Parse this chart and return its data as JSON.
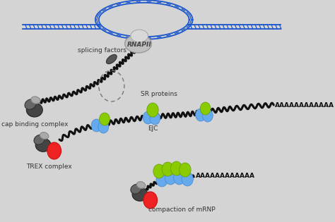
{
  "background_color": "#d4d4d4",
  "labels": {
    "splicing_factors": "splicing factors",
    "rnapii": "RNAPII",
    "cap_binding": "cap binding complex",
    "sr_proteins": "SR proteins",
    "ejc": "EJC",
    "trex": "TREX complex",
    "poly_a_1": "AAAAAAAAAAAA",
    "poly_a_2": "AAAAAAAAAAAA",
    "compaction": "compaction of mRNP"
  },
  "colors": {
    "background": "#d4d4d4",
    "dna_line": "#1a55cc",
    "mrna_line": "#111111",
    "rnapii_body": "#c8c8c8",
    "rnapii_outline": "#999999",
    "green_ball": "#88cc00",
    "blue_ball": "#66aaee",
    "red_ball": "#ee2222",
    "cap_dark": "#333333",
    "cap_mid": "#777777",
    "cap_light": "#bbbbbb",
    "text_color": "#333333",
    "dashed_circle": "#777777"
  },
  "font_size": 6.5
}
